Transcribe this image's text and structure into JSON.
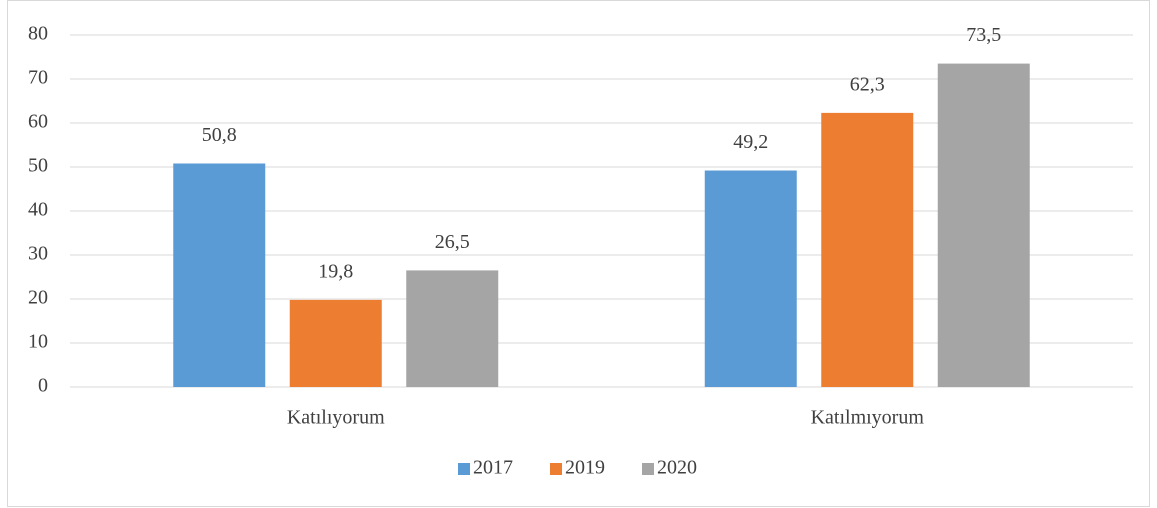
{
  "chart_data": {
    "type": "bar",
    "categories": [
      "Katılıyorum",
      "Katılmıyorum"
    ],
    "series": [
      {
        "name": "2017",
        "color": "#5b9bd5",
        "values": [
          50.8,
          49.2
        ],
        "value_labels": [
          "50,8",
          "49,2"
        ]
      },
      {
        "name": "2019",
        "color": "#ed7d31",
        "values": [
          19.8,
          62.3
        ],
        "value_labels": [
          "19,8",
          "62,3"
        ]
      },
      {
        "name": "2020",
        "color": "#a5a5a5",
        "values": [
          26.5,
          73.5
        ],
        "value_labels": [
          "26,5",
          "73,5"
        ]
      }
    ],
    "ylim": [
      0,
      80
    ],
    "yticks": [
      0,
      10,
      20,
      30,
      40,
      50,
      60,
      70,
      80
    ],
    "grid": true,
    "legend": "bottom"
  }
}
